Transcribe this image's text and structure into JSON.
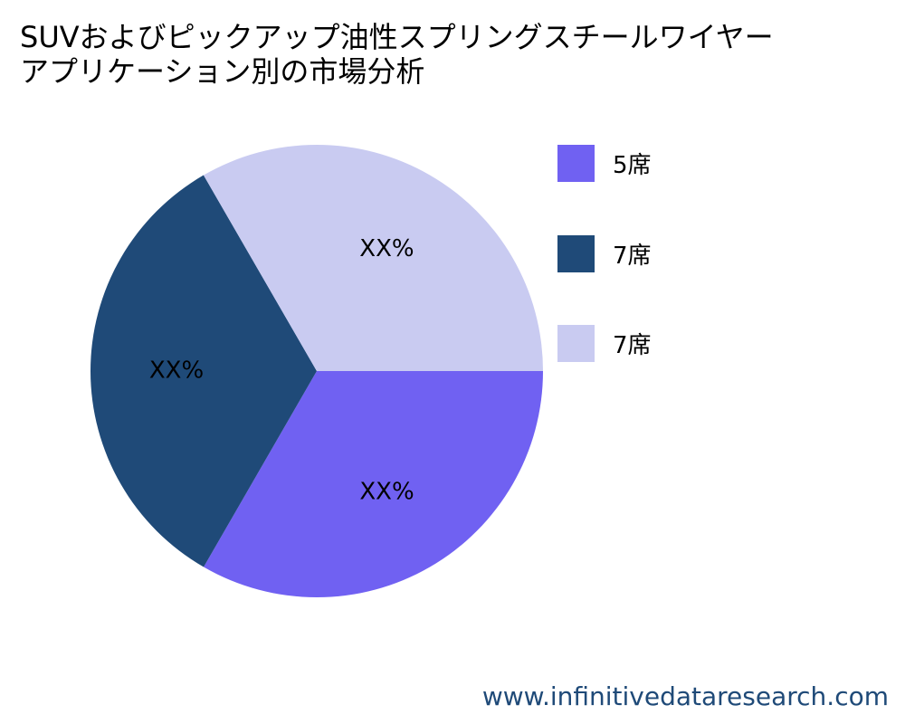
{
  "title_lines": [
    "SUVおよびピックアップ油性スプリングスチールワイヤー",
    "アプリケーション別の市場分析"
  ],
  "legend": [
    {
      "label": "5席",
      "color": "#7061f2"
    },
    {
      "label": "7席",
      "color": "#1f4a78"
    },
    {
      "label": "7席",
      "color": "#c9cbf1"
    }
  ],
  "chart_data": {
    "type": "pie",
    "title": "SUVおよびピックアップ油性スプリングスチールワイヤーアプリケーション別の市場分析",
    "categories": [
      "5席",
      "7席",
      "7席"
    ],
    "values": [
      33.33,
      33.33,
      33.34
    ],
    "data_labels": [
      "XX%",
      "XX%",
      "XX%"
    ],
    "colors": [
      "#7061f2",
      "#1f4a78",
      "#c9cbf1"
    ],
    "legend_position": "right"
  },
  "watermark": "www.infinitivedataresearch.com"
}
